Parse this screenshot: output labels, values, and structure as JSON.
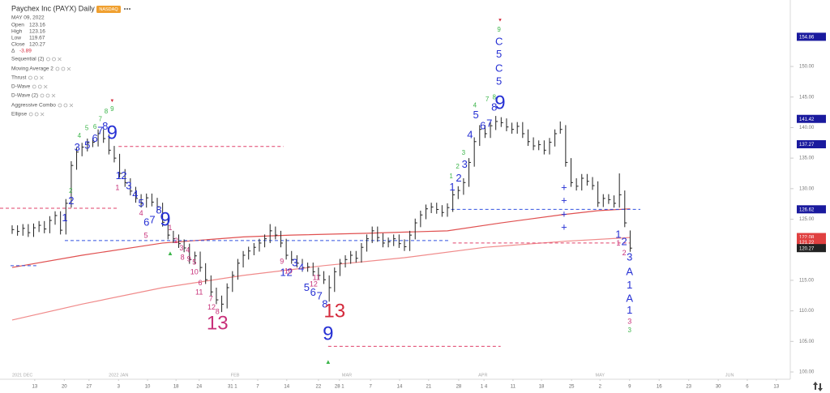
{
  "header": {
    "title": "Paychex Inc (PAYX) Daily",
    "exchange": "NASDAQ",
    "date": "MAY 09, 2022",
    "ohlc": [
      {
        "label": "Open",
        "value": 123.16
      },
      {
        "label": "High",
        "value": 123.16
      },
      {
        "label": "Low",
        "value": 119.67
      },
      {
        "label": "Close",
        "value": 120.27
      }
    ],
    "change": {
      "label": "Δ",
      "value": -3.89
    }
  },
  "indicators": [
    "Sequential (2)",
    "Moving Average 2",
    "Thrust",
    "D-Wave",
    "D-Wave (2)",
    "Aggressive Combo",
    "Ellipse"
  ],
  "chart_data": {
    "type": "ohlc",
    "bar_color": "#222222",
    "high": [
      124.0,
      124.0,
      124.2,
      124.2,
      124.3,
      124.7,
      124.7,
      125.5,
      126.3,
      126.3,
      128.3,
      134.5,
      136.7,
      137.5,
      138.2,
      138.3,
      139.7,
      139.7,
      138.9,
      137.0,
      135.7,
      133.2,
      131.7,
      130.3,
      129.1,
      129.2,
      129.2,
      128.5,
      127.7,
      125.2,
      123.1,
      122.5,
      121.7,
      121.0,
      119.7,
      119.7,
      117.8,
      115.8,
      113.8,
      112.5,
      114.5,
      116.5,
      118.5,
      119.8,
      120.5,
      121.1,
      121.8,
      122.5,
      124.2,
      123.8,
      123.1,
      121.8,
      119.8,
      119.1,
      118.5,
      117.9,
      117.9,
      117.1,
      116.5,
      115.8,
      117.1,
      118.5,
      119.1,
      119.8,
      119.8,
      121.1,
      122.5,
      123.8,
      123.8,
      122.7,
      122.0,
      122.5,
      122.5,
      121.7,
      123.1,
      125.1,
      126.4,
      127.4,
      127.7,
      127.7,
      127.3,
      127.6,
      129.7,
      130.4,
      131.7,
      135.0,
      138.4,
      140.4,
      140.4,
      141.0,
      141.9,
      141.7,
      141.5,
      140.8,
      140.9,
      140.9,
      139.7,
      138.4,
      137.9,
      137.9,
      138.3,
      139.7,
      141.0,
      140.4,
      135.0,
      131.7,
      132.4,
      132.4,
      131.9,
      131.2,
      129.1,
      129.1,
      128.9,
      132.5,
      129.7,
      123.16
    ],
    "low": [
      122.6,
      122.3,
      122.3,
      122.1,
      122.1,
      122.9,
      122.7,
      122.7,
      124.1,
      122.5,
      122.5,
      126.9,
      133.1,
      135.3,
      136.1,
      136.8,
      136.9,
      137.5,
      135.6,
      134.3,
      131.8,
      130.3,
      128.9,
      127.7,
      126.9,
      126.9,
      127.1,
      126.3,
      123.8,
      121.7,
      121.1,
      120.3,
      119.6,
      117.7,
      117.7,
      116.4,
      114.4,
      112.4,
      111.1,
      109.8,
      110.4,
      113.1,
      115.1,
      117.1,
      118.4,
      119.1,
      119.7,
      120.4,
      121.1,
      121.7,
      120.4,
      118.4,
      117.7,
      117.1,
      116.4,
      116.4,
      115.7,
      115.1,
      114.4,
      111.5,
      113.1,
      115.7,
      117.1,
      117.7,
      117.9,
      117.9,
      119.7,
      121.1,
      121.3,
      120.4,
      120.4,
      120.6,
      120.3,
      119.8,
      119.8,
      121.7,
      123.7,
      125.0,
      126.0,
      125.9,
      125.4,
      125.4,
      126.2,
      128.3,
      129.0,
      130.3,
      133.6,
      137.0,
      138.3,
      138.3,
      139.6,
      140.1,
      139.4,
      139.0,
      139.0,
      138.3,
      137.0,
      136.3,
      136.3,
      135.6,
      135.6,
      136.9,
      139.0,
      133.6,
      130.3,
      129.7,
      129.7,
      130.5,
      129.8,
      127.0,
      127.0,
      127.5,
      126.9,
      126.9,
      123.7,
      119.67
    ],
    "close": [
      123.3,
      123.0,
      123.5,
      122.8,
      123.6,
      124.0,
      123.4,
      124.8,
      125.6,
      123.2,
      127.6,
      133.8,
      136.0,
      136.8,
      137.5,
      137.6,
      139.0,
      138.2,
      136.3,
      135.0,
      132.5,
      131.0,
      129.6,
      128.4,
      127.6,
      128.5,
      127.8,
      127.0,
      124.5,
      122.4,
      121.8,
      121.0,
      120.3,
      118.4,
      119.0,
      117.1,
      115.1,
      113.1,
      111.8,
      111.1,
      113.8,
      115.8,
      117.8,
      119.1,
      119.8,
      120.4,
      121.1,
      121.8,
      123.1,
      122.4,
      121.1,
      119.1,
      118.4,
      117.8,
      117.1,
      117.2,
      116.4,
      115.8,
      115.1,
      113.8,
      116.4,
      117.8,
      118.4,
      119.1,
      118.6,
      120.4,
      121.8,
      123.1,
      122.0,
      121.1,
      121.3,
      121.8,
      121.0,
      120.5,
      122.4,
      124.4,
      125.7,
      126.7,
      127.0,
      126.6,
      126.1,
      126.9,
      129.0,
      129.7,
      131.0,
      134.3,
      137.7,
      139.7,
      139.0,
      140.3,
      141.0,
      140.8,
      140.1,
      139.7,
      140.2,
      139.0,
      137.7,
      137.0,
      137.2,
      136.3,
      137.6,
      139.0,
      139.7,
      134.3,
      131.0,
      130.4,
      131.7,
      131.2,
      130.5,
      127.7,
      128.4,
      128.2,
      127.6,
      129.0,
      124.4,
      120.27
    ],
    "xlim": [
      -2.26,
      144.8
    ],
    "xticks": [
      {
        "value": 4.2,
        "label": "13"
      },
      {
        "value": 9.7,
        "label": "20"
      },
      {
        "value": 14.3,
        "label": "27"
      },
      {
        "value": 19.8,
        "label": "3"
      },
      {
        "value": 25.2,
        "label": "10"
      },
      {
        "value": 30.5,
        "label": "18"
      },
      {
        "value": 34.8,
        "label": "24"
      },
      {
        "value": 41.0,
        "label": "31 1"
      },
      {
        "value": 45.7,
        "label": "7"
      },
      {
        "value": 51.1,
        "label": "14"
      },
      {
        "value": 57.0,
        "label": "22"
      },
      {
        "value": 60.9,
        "label": "28 1"
      },
      {
        "value": 66.7,
        "label": "7"
      },
      {
        "value": 72.1,
        "label": "14"
      },
      {
        "value": 77.5,
        "label": "21"
      },
      {
        "value": 83.1,
        "label": "28"
      },
      {
        "value": 87.8,
        "label": "1 4"
      },
      {
        "value": 93.2,
        "label": "11"
      },
      {
        "value": 98.5,
        "label": "18"
      },
      {
        "value": 104.1,
        "label": "25"
      },
      {
        "value": 109.4,
        "label": "2"
      },
      {
        "value": 114.9,
        "label": "9"
      },
      {
        "value": 120.4,
        "label": "16"
      },
      {
        "value": 125.9,
        "label": "23"
      },
      {
        "value": 131.4,
        "label": "30"
      },
      {
        "value": 136.8,
        "label": "6"
      },
      {
        "value": 142.2,
        "label": "13"
      }
    ],
    "month_ticks": [
      {
        "value": 0,
        "label": "2021 DEC"
      },
      {
        "value": 19.8,
        "label": "2022 JAN"
      },
      {
        "value": 41.5,
        "label": "FEB"
      },
      {
        "value": 62.3,
        "label": "MAR"
      },
      {
        "value": 87.6,
        "label": "APR"
      },
      {
        "value": 109.4,
        "label": "MAY"
      },
      {
        "value": 133.5,
        "label": "JUN"
      }
    ],
    "ylim": [
      98.81,
      160.88
    ],
    "yticks": [
      {
        "value": 100,
        "label": "100.00"
      },
      {
        "value": 105,
        "label": "105.00"
      },
      {
        "value": 110,
        "label": "110.00"
      },
      {
        "value": 115,
        "label": "115.00"
      },
      {
        "value": 125,
        "label": "125.00"
      },
      {
        "value": 130,
        "label": "130.00"
      },
      {
        "value": 135,
        "label": "135.00"
      },
      {
        "value": 140,
        "label": "140.00"
      },
      {
        "value": 145,
        "label": "145.00"
      },
      {
        "value": 150,
        "label": "150.00"
      }
    ],
    "price_labels": [
      {
        "value": 154.86,
        "color": "#1a1a9e"
      },
      {
        "value": 141.42,
        "color": "#1a1a9e"
      },
      {
        "value": 137.27,
        "color": "#1a1a9e"
      },
      {
        "value": 126.62,
        "color": "#1a1a9e"
      },
      {
        "value": 122.08,
        "color": "#e04040"
      },
      {
        "value": 121.22,
        "color": "#e04040"
      },
      {
        "value": 120.27,
        "color": "#222222"
      }
    ],
    "moving_averages": [
      {
        "color": "#e05050",
        "x": [
          0,
          13,
          28,
          43,
          52,
          66,
          81,
          91,
          102,
          109,
          115
        ],
        "values": [
          117.1,
          119.1,
          121.1,
          122.1,
          122.4,
          122.7,
          123.1,
          124.4,
          125.7,
          126.4,
          126.7
        ]
      },
      {
        "color": "#f08a8a",
        "x": [
          0,
          13,
          28,
          43,
          58,
          73,
          88,
          103,
          115
        ],
        "values": [
          108.5,
          111.1,
          113.8,
          115.8,
          117.4,
          118.7,
          120.4,
          121.4,
          122.0
        ]
      }
    ],
    "levels": [
      {
        "y": 126.8,
        "x": [
          -2.26,
          19.6
        ],
        "color": "#e0406a"
      },
      {
        "y": 121.5,
        "x": [
          9.8,
          81.4
        ],
        "color": "#3050e0"
      },
      {
        "y": 117.4,
        "x": [
          -0.3,
          4.5
        ],
        "color": "#3050e0"
      },
      {
        "y": 136.9,
        "x": [
          19.8,
          50.5
        ],
        "color": "#e0406a"
      },
      {
        "y": 121.1,
        "x": [
          82.0,
          114.9
        ],
        "color": "#e0406a"
      },
      {
        "y": 126.62,
        "x": [
          81.7,
          116.9
        ],
        "color": "#3050e0"
      },
      {
        "y": 104.2,
        "x": [
          58.8,
          90.9
        ],
        "color": "#e0406a"
      }
    ],
    "setup_counts": {
      "color": "#2630d4",
      "labels": [
        {
          "text": "1",
          "x": 9.8,
          "y": 125.1
        },
        {
          "text": "2",
          "x": 11.0,
          "y": 127.9
        },
        {
          "text": "3",
          "x": 12.1,
          "y": 136.7
        },
        {
          "text": "5",
          "x": 14.0,
          "y": 137.0
        },
        {
          "text": "6",
          "x": 15.4,
          "y": 138.1
        },
        {
          "text": "7",
          "x": 16.4,
          "y": 139.4
        },
        {
          "text": "8",
          "x": 17.3,
          "y": 140.1
        },
        {
          "text": "1",
          "x": 19.8,
          "y": 132.0
        },
        {
          "text": "2",
          "x": 20.8,
          "y": 132.0
        },
        {
          "text": "3",
          "x": 21.7,
          "y": 130.4
        },
        {
          "text": "4",
          "x": 22.9,
          "y": 129.0
        },
        {
          "text": "5",
          "x": 24.0,
          "y": 127.5
        },
        {
          "text": "6",
          "x": 25.0,
          "y": 124.4
        },
        {
          "text": "7",
          "x": 26.1,
          "y": 124.8
        },
        {
          "text": "8",
          "x": 27.3,
          "y": 126.4
        },
        {
          "text": "1",
          "x": 50.4,
          "y": 116.2
        },
        {
          "text": "2",
          "x": 51.6,
          "y": 116.2
        },
        {
          "text": "3",
          "x": 52.6,
          "y": 117.8
        },
        {
          "text": "4",
          "x": 53.8,
          "y": 117.0
        },
        {
          "text": "5",
          "x": 54.8,
          "y": 113.7
        },
        {
          "text": "6",
          "x": 56.0,
          "y": 112.9
        },
        {
          "text": "7",
          "x": 57.2,
          "y": 112.3
        },
        {
          "text": "8",
          "x": 58.2,
          "y": 111.0
        },
        {
          "text": "1",
          "x": 81.9,
          "y": 130.2
        },
        {
          "text": "2",
          "x": 83.1,
          "y": 131.6
        },
        {
          "text": "3",
          "x": 84.2,
          "y": 133.9
        },
        {
          "text": "4",
          "x": 85.2,
          "y": 138.7
        },
        {
          "text": "5",
          "x": 86.3,
          "y": 142.0
        },
        {
          "text": "6",
          "x": 87.6,
          "y": 140.2
        },
        {
          "text": "7",
          "x": 88.8,
          "y": 140.6
        },
        {
          "text": "8",
          "x": 89.7,
          "y": 143.2
        },
        {
          "text": "C",
          "x": 90.6,
          "y": 154.0
        },
        {
          "text": "5",
          "x": 90.6,
          "y": 151.9
        },
        {
          "text": "C",
          "x": 90.6,
          "y": 149.6
        },
        {
          "text": "5",
          "x": 90.6,
          "y": 147.5
        },
        {
          "text": "+",
          "x": 102.7,
          "y": 130.1
        },
        {
          "text": "+",
          "x": 102.7,
          "y": 128.0
        },
        {
          "text": "+",
          "x": 102.7,
          "y": 125.7
        },
        {
          "text": "+",
          "x": 102.7,
          "y": 123.6
        },
        {
          "text": "1",
          "x": 112.8,
          "y": 122.4
        },
        {
          "text": "2",
          "x": 113.9,
          "y": 121.2
        },
        {
          "text": "3",
          "x": 114.9,
          "y": 118.7
        },
        {
          "text": "A",
          "x": 114.9,
          "y": 116.3
        },
        {
          "text": "1",
          "x": 114.9,
          "y": 114.1
        },
        {
          "text": "A",
          "x": 114.9,
          "y": 111.9
        },
        {
          "text": "1",
          "x": 114.9,
          "y": 110.0
        }
      ]
    },
    "countdown_counts": {
      "color": "#c8307a",
      "labels": [
        {
          "text": "1",
          "x": 19.6,
          "y": 130.1
        },
        {
          "text": "4",
          "x": 24.0,
          "y": 125.9
        },
        {
          "text": "5",
          "x": 24.9,
          "y": 122.3
        },
        {
          "text": "1",
          "x": 29.4,
          "y": 123.5
        },
        {
          "text": "2",
          "x": 30.5,
          "y": 121.4
        },
        {
          "text": "3",
          "x": 31.5,
          "y": 120.2
        },
        {
          "text": "4",
          "x": 32.7,
          "y": 119.9
        },
        {
          "text": "8",
          "x": 31.7,
          "y": 118.7
        },
        {
          "text": "9",
          "x": 32.9,
          "y": 118.4
        },
        {
          "text": "5",
          "x": 33.9,
          "y": 117.9
        },
        {
          "text": "10",
          "x": 33.9,
          "y": 116.3
        },
        {
          "text": "6",
          "x": 35.0,
          "y": 114.5
        },
        {
          "text": "11",
          "x": 34.8,
          "y": 113.0
        },
        {
          "text": "7",
          "x": 37.0,
          "y": 111.9
        },
        {
          "text": "12",
          "x": 37.1,
          "y": 110.5
        },
        {
          "text": "8",
          "x": 38.2,
          "y": 109.8
        },
        {
          "text": "9",
          "x": 50.2,
          "y": 118.0
        },
        {
          "text": "10",
          "x": 51.4,
          "y": 116.4
        },
        {
          "text": "11",
          "x": 56.6,
          "y": 115.4
        },
        {
          "text": "12",
          "x": 56.1,
          "y": 114.3
        },
        {
          "text": "1",
          "x": 112.8,
          "y": 121.0
        },
        {
          "text": "2",
          "x": 113.9,
          "y": 119.4
        },
        {
          "text": "3",
          "x": 114.9,
          "y": 108.2
        }
      ]
    },
    "minor_counts": {
      "color": "#3cb54a",
      "labels": [
        {
          "text": "2",
          "x": 10.9,
          "y": 129.6
        },
        {
          "text": "4",
          "x": 12.5,
          "y": 138.6
        },
        {
          "text": "5",
          "x": 13.9,
          "y": 139.9
        },
        {
          "text": "6",
          "x": 15.4,
          "y": 140.1
        },
        {
          "text": "7",
          "x": 16.4,
          "y": 141.3
        },
        {
          "text": "8",
          "x": 17.5,
          "y": 142.6
        },
        {
          "text": "9",
          "x": 18.6,
          "y": 143.0
        },
        {
          "text": "1",
          "x": 81.7,
          "y": 132.0
        },
        {
          "text": "2",
          "x": 82.9,
          "y": 133.6
        },
        {
          "text": "3",
          "x": 84.0,
          "y": 135.8
        },
        {
          "text": "4",
          "x": 86.1,
          "y": 143.6
        },
        {
          "text": "7",
          "x": 88.4,
          "y": 144.6
        },
        {
          "text": "8",
          "x": 89.7,
          "y": 144.9
        },
        {
          "text": "9",
          "x": 90.6,
          "y": 156.0
        },
        {
          "text": "3",
          "x": 114.9,
          "y": 106.8
        },
        {
          "text": "▲",
          "x": 29.4,
          "y": 119.4
        },
        {
          "text": "▲",
          "x": 58.8,
          "y": 101.6
        }
      ]
    },
    "signal_marks": {
      "color": "#d42a3c",
      "labels": [
        {
          "text": "▼",
          "x": 90.8,
          "y": 157.6
        },
        {
          "text": "▼",
          "x": 18.6,
          "y": 144.4
        }
      ]
    },
    "major_counts": [
      {
        "text": "9",
        "x": 18.6,
        "y": 139.0,
        "color": "#2630d4"
      },
      {
        "text": "9",
        "x": 28.5,
        "y": 124.8,
        "color": "#2630d4"
      },
      {
        "text": "13",
        "x": 38.2,
        "y": 107.8,
        "color": "#c8307a"
      },
      {
        "text": "13",
        "x": 60.0,
        "y": 109.8,
        "color": "#d42a3c"
      },
      {
        "text": "9",
        "x": 58.8,
        "y": 106.1,
        "color": "#2630d4"
      },
      {
        "text": "9",
        "x": 90.8,
        "y": 143.9,
        "color": "#2630d4"
      }
    ]
  }
}
